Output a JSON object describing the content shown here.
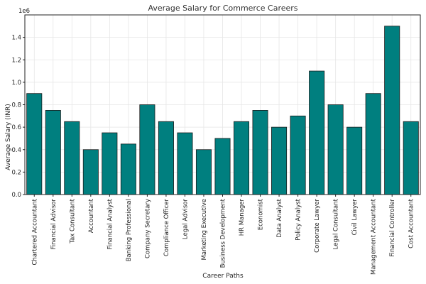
{
  "chart_data": {
    "type": "bar",
    "title": "Average Salary for Commerce Careers",
    "xlabel": "Career Paths",
    "ylabel": "Average Salary (INR)",
    "y_offset_label": "1e6",
    "ylim": [
      0,
      1.6
    ],
    "yticks": [
      "0.0",
      "0.2",
      "0.4",
      "0.6",
      "0.8",
      "1.0",
      "1.2",
      "1.4"
    ],
    "grid": true,
    "bar_color": "#007f7f",
    "categories": [
      "Chartered Accountant",
      "Financial Advisor",
      "Tax Consultant",
      "Accountant",
      "Financial Analyst",
      "Banking Professional",
      "Company Secretary",
      "Compliance Officer",
      "Legal Advisor",
      "Marketing Executive",
      "Business Development",
      "HR Manager",
      "Economist",
      "Data Analyst",
      "Policy Analyst",
      "Corporate Lawyer",
      "Legal Consultant",
      "Civil Lawyer",
      "Management Accountant",
      "Financial Controller",
      "Cost Accountant"
    ],
    "values": [
      0.9,
      0.75,
      0.65,
      0.4,
      0.55,
      0.45,
      0.8,
      0.65,
      0.55,
      0.4,
      0.5,
      0.65,
      0.75,
      0.6,
      0.7,
      1.1,
      0.8,
      0.6,
      0.9,
      1.5,
      0.65
    ]
  }
}
